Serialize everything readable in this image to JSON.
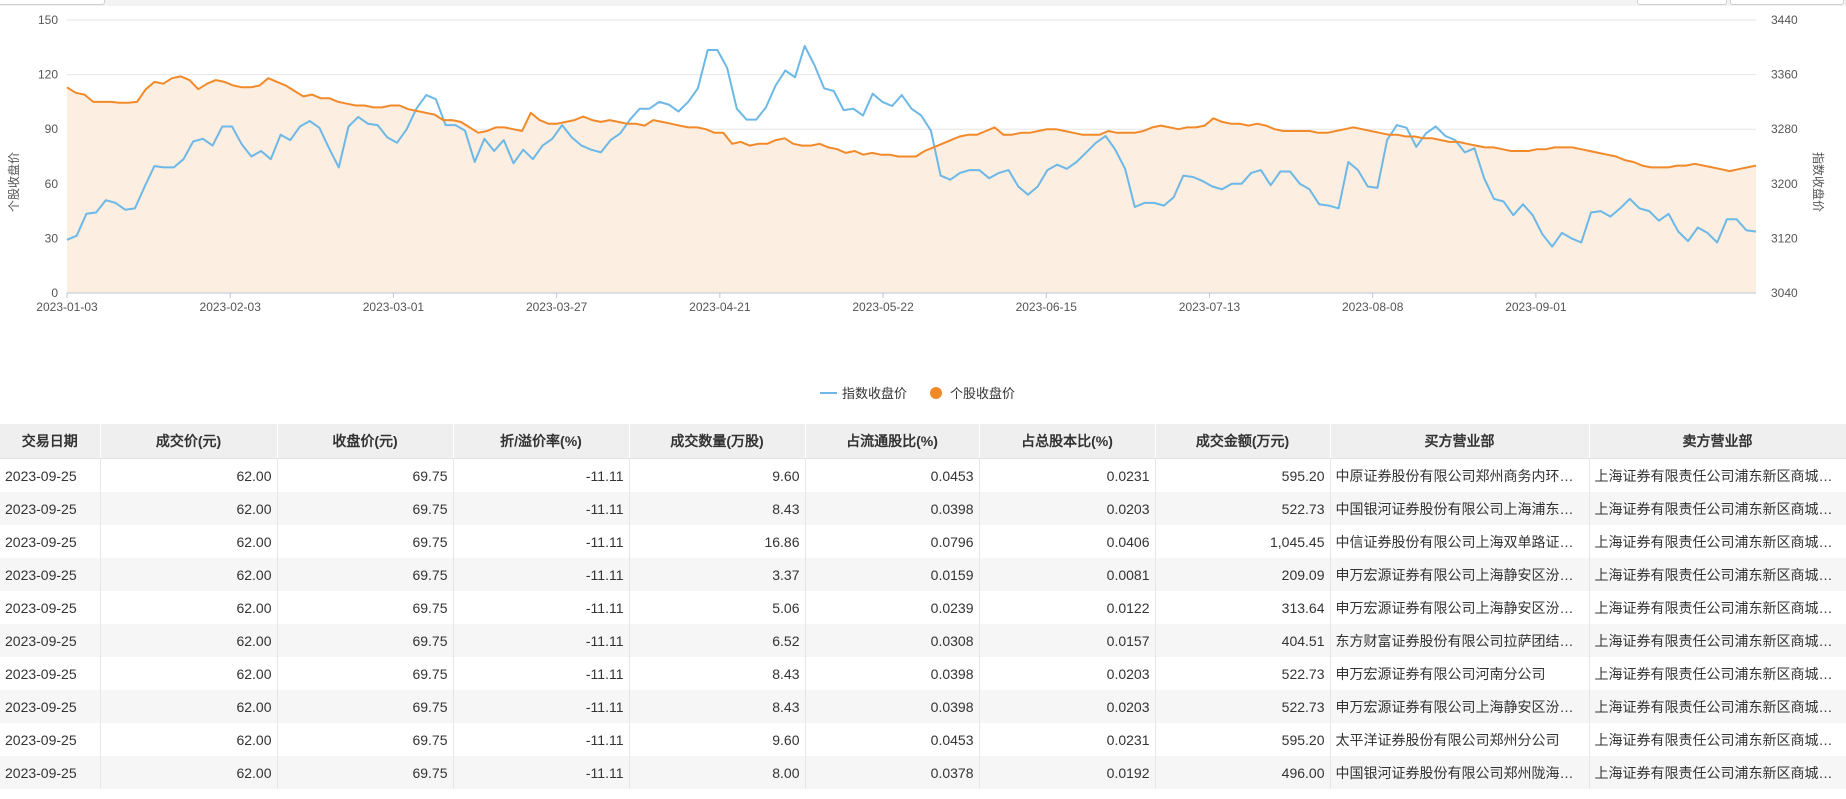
{
  "chart_data": {
    "type": "line",
    "x_tick_labels": [
      "2023-01-03",
      "2023-02-03",
      "2023-03-01",
      "2023-03-27",
      "2023-04-21",
      "2023-05-22",
      "2023-06-15",
      "2023-07-13",
      "2023-08-08",
      "2023-09-01"
    ],
    "ylabel_left": "个股收盘价",
    "ylabel_right": "指数收盘价",
    "y_left": {
      "min": 0,
      "max": 150,
      "ticks": [
        "0",
        "30",
        "60",
        "90",
        "120",
        "150"
      ]
    },
    "y_right": {
      "min": 3040,
      "max": 3440,
      "ticks": [
        "3040",
        "3120",
        "3200",
        "3280",
        "3360",
        "3440"
      ]
    },
    "legend": [
      {
        "name": "指数收盘价",
        "color": "#6cb8e6"
      },
      {
        "name": "个股收盘价",
        "color": "#f28a2a"
      }
    ],
    "series": [
      {
        "name": "个股收盘价",
        "axis": "left",
        "color": "#f28a2a",
        "fill": "#fdeee2",
        "values": [
          113,
          110,
          109,
          105,
          105,
          105,
          104.5,
          104.5,
          105,
          112,
          116,
          115,
          118,
          119,
          117,
          112,
          115,
          117,
          116,
          114,
          113,
          113,
          114,
          118,
          116,
          114,
          111,
          108,
          109,
          107,
          107,
          105,
          104,
          103,
          103,
          102,
          102,
          103,
          103,
          101,
          100,
          99,
          98,
          95,
          95,
          94,
          91,
          88,
          89,
          91,
          91,
          90,
          89,
          99,
          95,
          93,
          93,
          94,
          95,
          97,
          95,
          94,
          95,
          94,
          93,
          93,
          92,
          95,
          94,
          93,
          92,
          91,
          91,
          90,
          88,
          88,
          82,
          83,
          81,
          82,
          82,
          84,
          85,
          82,
          81,
          81,
          82,
          80,
          79,
          77,
          78,
          76,
          77,
          76,
          76,
          75,
          75,
          75,
          78,
          80,
          82,
          84,
          86,
          87,
          87,
          89,
          91,
          87,
          87,
          88,
          88,
          89,
          90,
          90,
          89,
          88,
          87,
          87,
          87,
          89,
          88,
          88,
          88,
          89,
          91,
          92,
          91,
          90,
          91,
          91,
          92,
          96,
          94,
          93,
          93,
          92,
          93,
          92,
          90,
          89,
          89,
          89,
          89,
          88,
          88,
          89,
          90,
          91,
          90,
          89,
          88,
          87,
          87,
          86,
          86,
          85,
          85,
          84,
          83,
          83,
          82,
          81,
          80,
          80,
          79,
          78,
          78,
          78,
          79,
          79,
          80,
          80,
          80,
          79,
          78,
          77,
          76,
          75,
          73,
          72,
          70,
          69,
          69,
          69,
          70,
          70,
          71,
          70,
          69,
          68,
          67,
          68,
          69,
          70
        ]
      },
      {
        "name": "指数收盘价",
        "axis": "right",
        "color": "#6cb8e6",
        "values": [
          3118,
          3124,
          3156,
          3158,
          3176,
          3172,
          3162,
          3164,
          3196,
          3226,
          3224,
          3224,
          3236,
          3262,
          3266,
          3256,
          3284,
          3284,
          3258,
          3240,
          3248,
          3236,
          3272,
          3264,
          3284,
          3292,
          3282,
          3252,
          3224,
          3284,
          3298,
          3288,
          3286,
          3268,
          3260,
          3280,
          3310,
          3330,
          3324,
          3286,
          3286,
          3278,
          3232,
          3266,
          3248,
          3264,
          3230,
          3250,
          3236,
          3256,
          3266,
          3286,
          3268,
          3256,
          3250,
          3246,
          3264,
          3274,
          3294,
          3310,
          3310,
          3320,
          3316,
          3306,
          3320,
          3340,
          3396,
          3396,
          3370,
          3310,
          3294,
          3294,
          3312,
          3344,
          3366,
          3356,
          3402,
          3374,
          3340,
          3336,
          3308,
          3310,
          3300,
          3332,
          3320,
          3314,
          3330,
          3310,
          3300,
          3278,
          3212,
          3206,
          3216,
          3220,
          3220,
          3208,
          3216,
          3220,
          3196,
          3184,
          3196,
          3220,
          3228,
          3222,
          3232,
          3246,
          3260,
          3270,
          3250,
          3222,
          3166,
          3172,
          3172,
          3168,
          3180,
          3212,
          3210,
          3204,
          3196,
          3192,
          3200,
          3200,
          3216,
          3220,
          3198,
          3218,
          3218,
          3200,
          3192,
          3170,
          3168,
          3164,
          3232,
          3220,
          3196,
          3194,
          3264,
          3286,
          3282,
          3254,
          3274,
          3284,
          3270,
          3264,
          3246,
          3252,
          3208,
          3178,
          3174,
          3154,
          3170,
          3154,
          3126,
          3108,
          3128,
          3120,
          3114,
          3158,
          3160,
          3152,
          3164,
          3178,
          3164,
          3160,
          3146,
          3156,
          3130,
          3116,
          3136,
          3128,
          3114,
          3148,
          3148,
          3132,
          3130
        ]
      }
    ]
  },
  "table": {
    "headers": [
      "交易日期",
      "成交价(元)",
      "收盘价(元)",
      "折/溢价率(%)",
      "成交数量(万股)",
      "占流通股比(%)",
      "占总股本比(%)",
      "成交金额(万元)",
      "买方营业部",
      "卖方营业部"
    ],
    "rows": [
      [
        "2023-09-25",
        "62.00",
        "69.75",
        "-11.11",
        "9.60",
        "0.0453",
        "0.0231",
        "595.20",
        "中原证券股份有限公司郑州商务内环路证券营业部",
        "上海证券有限责任公司浦东新区商城路证券营业部"
      ],
      [
        "2023-09-25",
        "62.00",
        "69.75",
        "-11.11",
        "8.43",
        "0.0398",
        "0.0203",
        "522.73",
        "中国银河证券股份有限公司上海浦东新区证券营业部",
        "上海证券有限责任公司浦东新区商城路证券营业部"
      ],
      [
        "2023-09-25",
        "62.00",
        "69.75",
        "-11.11",
        "16.86",
        "0.0796",
        "0.0406",
        "1,045.45",
        "中信证券股份有限公司上海双单路证券营业部",
        "上海证券有限责任公司浦东新区商城路证券营业部"
      ],
      [
        "2023-09-25",
        "62.00",
        "69.75",
        "-11.11",
        "3.37",
        "0.0159",
        "0.0081",
        "209.09",
        "申万宏源证券有限公司上海静安区汾阳路证券营业部",
        "上海证券有限责任公司浦东新区商城路证券营业部"
      ],
      [
        "2023-09-25",
        "62.00",
        "69.75",
        "-11.11",
        "5.06",
        "0.0239",
        "0.0122",
        "313.64",
        "申万宏源证券有限公司上海静安区汾阳路证券营业部",
        "上海证券有限责任公司浦东新区商城路证券营业部"
      ],
      [
        "2023-09-25",
        "62.00",
        "69.75",
        "-11.11",
        "6.52",
        "0.0308",
        "0.0157",
        "404.51",
        "东方财富证券股份有限公司拉萨团结路第二证券营业部",
        "上海证券有限责任公司浦东新区商城路证券营业部"
      ],
      [
        "2023-09-25",
        "62.00",
        "69.75",
        "-11.11",
        "8.43",
        "0.0398",
        "0.0203",
        "522.73",
        "申万宏源证券有限公司河南分公司",
        "上海证券有限责任公司浦东新区商城路证券营业部"
      ],
      [
        "2023-09-25",
        "62.00",
        "69.75",
        "-11.11",
        "8.43",
        "0.0398",
        "0.0203",
        "522.73",
        "申万宏源证券有限公司上海静安区汾阳路证券营业部",
        "上海证券有限责任公司浦东新区商城路证券营业部"
      ],
      [
        "2023-09-25",
        "62.00",
        "69.75",
        "-11.11",
        "9.60",
        "0.0453",
        "0.0231",
        "595.20",
        "太平洋证券股份有限公司郑州分公司",
        "上海证券有限责任公司浦东新区商城路证券营业部"
      ],
      [
        "2023-09-25",
        "62.00",
        "69.75",
        "-11.11",
        "8.00",
        "0.0378",
        "0.0192",
        "496.00",
        "中国银河证券股份有限公司郑州陇海中路证券营业部",
        "上海证券有限责任公司浦东新区商城路证券营业部"
      ]
    ]
  }
}
